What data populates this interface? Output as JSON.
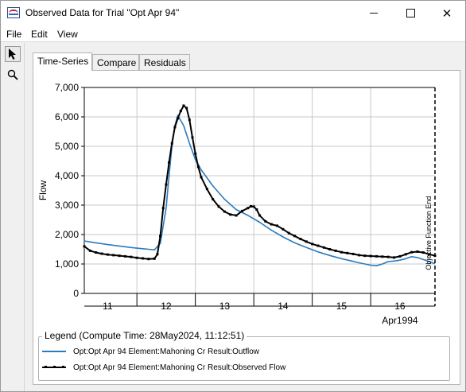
{
  "window": {
    "title": "Observed Data for Trial \"Opt Apr 94\"",
    "icon": "hms-app-icon",
    "controls": [
      "minimize-icon",
      "maximize-icon",
      "close-icon"
    ]
  },
  "menu": {
    "file": "File",
    "edit": "Edit",
    "view": "View"
  },
  "toolbar": {
    "tools": [
      "pointer-arrow-icon",
      "magnifier-zoom-icon"
    ]
  },
  "tabs": [
    {
      "label": "Time-Series",
      "active": true
    },
    {
      "label": "Compare",
      "active": false
    },
    {
      "label": "Residuals",
      "active": false
    }
  ],
  "chart_data": {
    "type": "line",
    "ylabel": "Flow",
    "ylim": [
      0,
      7000
    ],
    "yticks": [
      "0",
      "1,000",
      "2,000",
      "3,000",
      "4,000",
      "5,000",
      "6,000",
      "7,000"
    ],
    "xlim": [
      10.6,
      16.6
    ],
    "xticks": [
      11,
      12,
      13,
      14,
      15,
      16
    ],
    "xtick_labels": [
      "11",
      "12",
      "13",
      "14",
      "15",
      "16"
    ],
    "x_period_label": "Apr1994",
    "grid": true,
    "vertical_marker": {
      "x": 16.6,
      "label": "Objective Function End"
    },
    "colors": {
      "outflow": "#2b7bbd",
      "observed": "#000000"
    },
    "series": [
      {
        "name": "Opt:Opt Apr 94 Element:Mahoning Cr Result:Outflow",
        "color": "#2b7bbd",
        "markers": false,
        "x": [
          10.6,
          10.8,
          11.0,
          11.2,
          11.4,
          11.6,
          11.7,
          11.8,
          11.9,
          12.0,
          12.05,
          12.1,
          12.15,
          12.2,
          12.3,
          12.4,
          12.5,
          12.6,
          12.8,
          13.0,
          13.2,
          13.4,
          13.6,
          13.8,
          14.0,
          14.2,
          14.4,
          14.6,
          14.8,
          15.0,
          15.2,
          15.3,
          15.4,
          15.5,
          15.6,
          15.7,
          15.8,
          15.9,
          16.0,
          16.1,
          16.2,
          16.3,
          16.4,
          16.5,
          16.6
        ],
        "y": [
          1780,
          1720,
          1660,
          1610,
          1560,
          1520,
          1500,
          1480,
          1700,
          2900,
          4000,
          5000,
          5700,
          6050,
          5700,
          5100,
          4550,
          4200,
          3650,
          3200,
          2850,
          2650,
          2420,
          2150,
          1920,
          1720,
          1560,
          1410,
          1290,
          1180,
          1090,
          1040,
          1000,
          960,
          940,
          1000,
          1080,
          1100,
          1130,
          1180,
          1250,
          1220,
          1150,
          1080,
          1010
        ]
      },
      {
        "name": "Opt:Opt Apr 94 Element:Mahoning Cr Result:Observed Flow",
        "color": "#000000",
        "markers": true,
        "x": [
          10.6,
          10.7,
          10.8,
          10.9,
          11.0,
          11.1,
          11.2,
          11.3,
          11.4,
          11.5,
          11.6,
          11.7,
          11.8,
          11.85,
          11.9,
          11.95,
          12.0,
          12.05,
          12.1,
          12.15,
          12.2,
          12.25,
          12.3,
          12.35,
          12.4,
          12.45,
          12.5,
          12.55,
          12.6,
          12.7,
          12.8,
          12.9,
          13.0,
          13.1,
          13.2,
          13.3,
          13.4,
          13.45,
          13.5,
          13.55,
          13.6,
          13.7,
          13.8,
          13.9,
          14.0,
          14.1,
          14.2,
          14.3,
          14.4,
          14.5,
          14.6,
          14.7,
          14.8,
          14.9,
          15.0,
          15.1,
          15.2,
          15.3,
          15.4,
          15.5,
          15.6,
          15.7,
          15.8,
          15.9,
          16.0,
          16.1,
          16.2,
          16.3,
          16.4,
          16.5,
          16.6
        ],
        "y": [
          1600,
          1450,
          1390,
          1350,
          1320,
          1300,
          1280,
          1260,
          1240,
          1210,
          1190,
          1170,
          1180,
          1330,
          1950,
          2900,
          3700,
          4450,
          5100,
          5650,
          5950,
          6200,
          6380,
          6300,
          5900,
          5300,
          4750,
          4300,
          3950,
          3550,
          3200,
          2950,
          2780,
          2680,
          2650,
          2800,
          2900,
          2960,
          2950,
          2850,
          2650,
          2450,
          2350,
          2300,
          2180,
          2050,
          1950,
          1850,
          1760,
          1680,
          1620,
          1560,
          1500,
          1450,
          1400,
          1370,
          1340,
          1300,
          1280,
          1270,
          1260,
          1250,
          1240,
          1220,
          1260,
          1330,
          1400,
          1420,
          1390,
          1330,
          1280
        ]
      }
    ]
  },
  "legend": {
    "title": "Legend (Compute Time: 28May2024, 11:12:51)",
    "items": [
      {
        "label": "Opt:Opt Apr 94 Element:Mahoning Cr Result:Outflow"
      },
      {
        "label": "Opt:Opt Apr 94 Element:Mahoning Cr Result:Observed Flow"
      }
    ]
  }
}
